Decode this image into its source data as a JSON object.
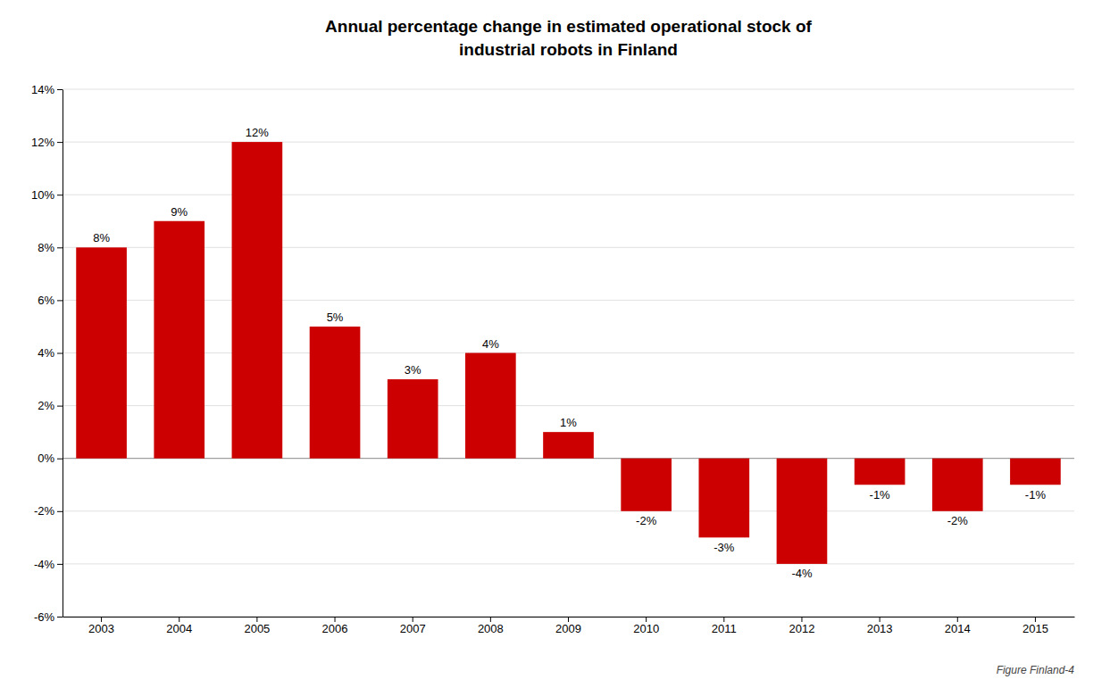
{
  "chart_data": {
    "type": "bar",
    "title": "Annual percentage change in estimated operational stock of\nindustrial robots in Finland",
    "annotations": [
      "Figure Finland-4"
    ],
    "categories": [
      "2003",
      "2004",
      "2005",
      "2006",
      "2007",
      "2008",
      "2009",
      "2010",
      "2011",
      "2012",
      "2013",
      "2014",
      "2015"
    ],
    "values": [
      8,
      9,
      12,
      5,
      3,
      4,
      1,
      -2,
      -3,
      -4,
      -1,
      -2,
      -1
    ],
    "value_labels": [
      "8%",
      "9%",
      "12%",
      "5%",
      "3%",
      "4%",
      "1%",
      "-2%",
      "-3%",
      "-4%",
      "-1%",
      "-2%",
      "-1%"
    ],
    "data_labels": true,
    "color": "#cc0000",
    "ylim": [
      -6,
      14
    ],
    "yticks": [
      {
        "value": -6,
        "label": "-6%"
      },
      {
        "value": -4,
        "label": "-4%"
      },
      {
        "value": -2,
        "label": "-2%"
      },
      {
        "value": 0,
        "label": "0%"
      },
      {
        "value": 2,
        "label": "2%"
      },
      {
        "value": 4,
        "label": "4%"
      },
      {
        "value": 6,
        "label": "6%"
      },
      {
        "value": 8,
        "label": "8%"
      },
      {
        "value": 10,
        "label": "10%"
      },
      {
        "value": 12,
        "label": "12%"
      },
      {
        "value": 14,
        "label": "14%"
      }
    ],
    "grid": true
  }
}
